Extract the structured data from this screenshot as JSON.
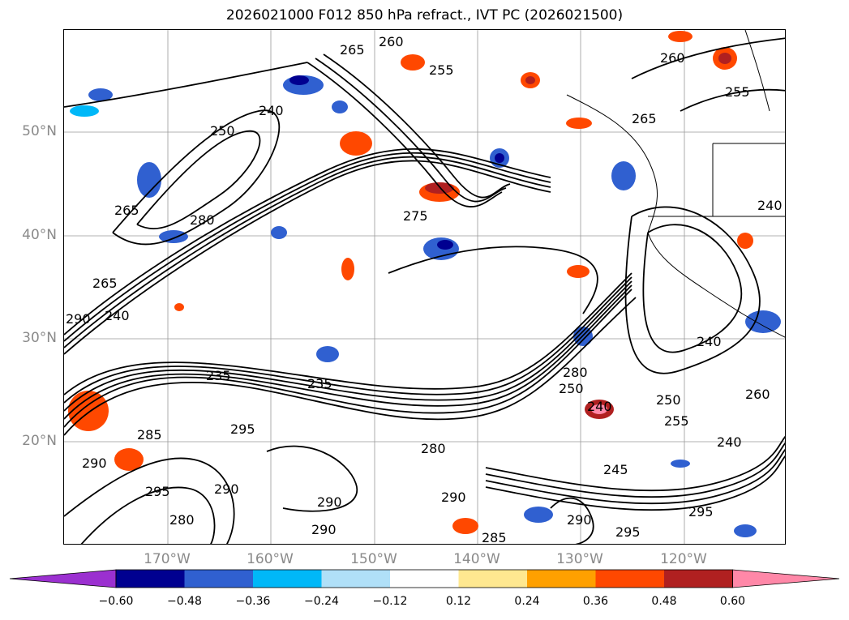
{
  "title": "2026021000 F012 850 hPa refract., IVT PC (2026021500)",
  "lat_labels": [
    "50°N",
    "40°N",
    "30°N",
    "20°N"
  ],
  "lon_labels": [
    "170°W",
    "160°W",
    "150°W",
    "140°W",
    "130°W",
    "120°W"
  ],
  "contour_labels": [
    "260",
    "265",
    "255",
    "260",
    "255",
    "265",
    "250",
    "240",
    "265",
    "280",
    "275",
    "265",
    "240",
    "290",
    "235",
    "235",
    "240",
    "250",
    "255",
    "280",
    "240",
    "295",
    "285",
    "290",
    "295",
    "290",
    "290",
    "280",
    "285",
    "245",
    "290",
    "290",
    "295",
    "240",
    "280",
    "250",
    "260",
    "240",
    "295",
    "290"
  ],
  "colorbar": {
    "colors": [
      "#9b30d0",
      "#000090",
      "#3060d0",
      "#00b8f8",
      "#b0e0f8",
      "#ffffff",
      "#ffe890",
      "#ffa000",
      "#ff4800",
      "#b02020",
      "#ff88a8"
    ],
    "tick_labels": [
      "−0.60",
      "−0.48",
      "−0.36",
      "−0.24",
      "−0.12",
      "0.12",
      "0.24",
      "0.36",
      "0.48",
      "0.60"
    ]
  }
}
